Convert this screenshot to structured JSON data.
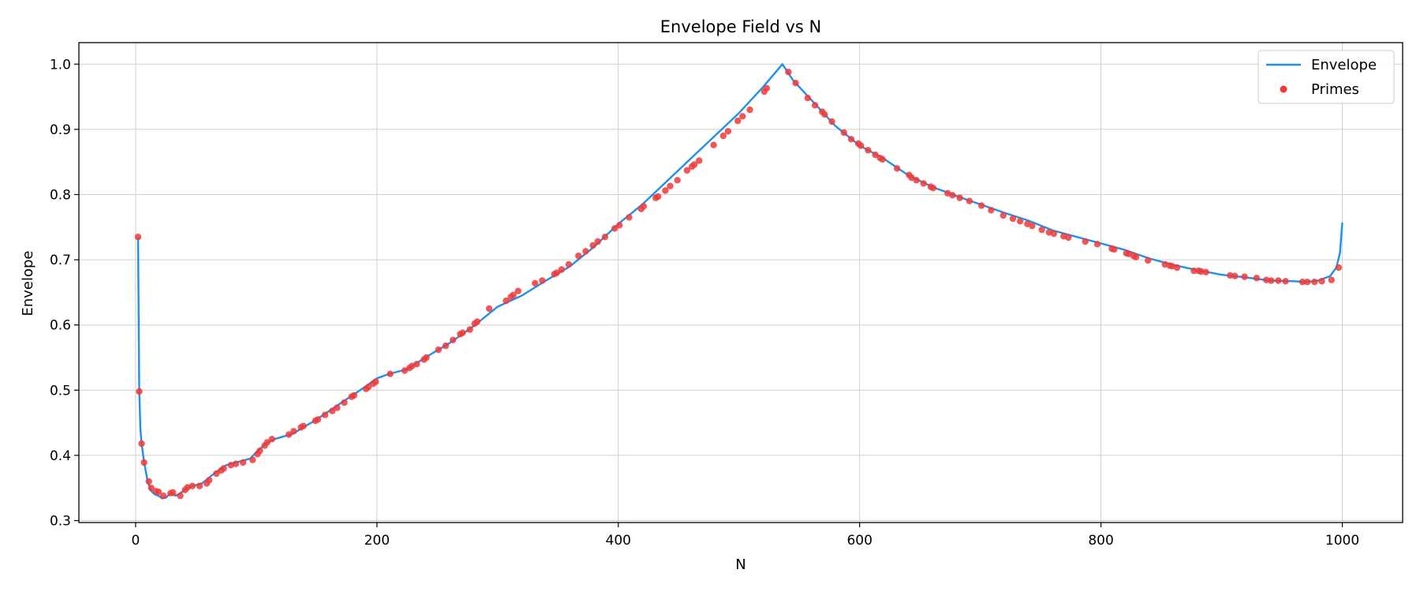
{
  "chart_data": {
    "type": "line",
    "title": "Envelope Field vs N",
    "xlabel": "N",
    "ylabel": "Envelope",
    "xlim": [
      -47,
      1050
    ],
    "ylim": [
      0.297,
      1.033
    ],
    "xticks": [
      0,
      200,
      400,
      600,
      800,
      1000
    ],
    "yticks": [
      0.3,
      0.4,
      0.5,
      0.6,
      0.7,
      0.8,
      0.9,
      1.0
    ],
    "xtick_labels": [
      "0",
      "200",
      "400",
      "600",
      "800",
      "1000"
    ],
    "ytick_labels": [
      "0.3",
      "0.4",
      "0.5",
      "0.6",
      "0.7",
      "0.8",
      "0.9",
      "1.0"
    ],
    "grid": true,
    "legend": "top-right",
    "colors": {
      "envelope": "#1f8ff0",
      "primes": "#f03a3a"
    },
    "series": [
      {
        "name": "Envelope",
        "type": "line",
        "x": [
          2,
          3,
          4,
          5,
          7,
          10,
          13,
          16,
          19,
          22,
          25,
          29,
          33,
          37,
          45,
          55,
          65,
          75,
          85,
          95,
          100,
          108,
          115,
          130,
          150,
          170,
          190,
          200,
          210,
          225,
          240,
          260,
          280,
          300,
          320,
          340,
          360,
          380,
          400,
          420,
          440,
          460,
          480,
          500,
          520,
          536,
          545,
          560,
          580,
          600,
          620,
          640,
          660,
          680,
          700,
          720,
          740,
          760,
          780,
          800,
          820,
          840,
          860,
          880,
          900,
          920,
          940,
          960,
          970,
          980,
          990,
          995,
          998,
          1000
        ],
        "y": [
          0.735,
          0.5,
          0.44,
          0.418,
          0.39,
          0.36,
          0.345,
          0.34,
          0.338,
          0.334,
          0.335,
          0.342,
          0.338,
          0.342,
          0.352,
          0.357,
          0.372,
          0.385,
          0.39,
          0.395,
          0.405,
          0.418,
          0.425,
          0.433,
          0.455,
          0.48,
          0.505,
          0.518,
          0.525,
          0.532,
          0.55,
          0.572,
          0.598,
          0.628,
          0.645,
          0.668,
          0.69,
          0.72,
          0.755,
          0.785,
          0.82,
          0.855,
          0.89,
          0.925,
          0.965,
          1.0,
          0.975,
          0.945,
          0.905,
          0.875,
          0.855,
          0.83,
          0.812,
          0.798,
          0.785,
          0.772,
          0.76,
          0.745,
          0.735,
          0.725,
          0.715,
          0.702,
          0.692,
          0.684,
          0.677,
          0.673,
          0.668,
          0.667,
          0.666,
          0.668,
          0.675,
          0.688,
          0.71,
          0.757
        ]
      },
      {
        "name": "Primes",
        "type": "scatter",
        "x": [
          2,
          3,
          5,
          7,
          11,
          13,
          17,
          19,
          23,
          29,
          31,
          37,
          41,
          43,
          47,
          53,
          59,
          61,
          67,
          71,
          73,
          79,
          83,
          89,
          97,
          101,
          103,
          107,
          109,
          113,
          127,
          131,
          137,
          139,
          149,
          151,
          157,
          163,
          167,
          173,
          179,
          181,
          191,
          193,
          197,
          199,
          211,
          223,
          227,
          229,
          233,
          239,
          241,
          251,
          257,
          263,
          269,
          271,
          277,
          281,
          283,
          293,
          307,
          311,
          313,
          317,
          331,
          337,
          347,
          349,
          353,
          359,
          367,
          373,
          379,
          383,
          389,
          397,
          401,
          409,
          419,
          421,
          431,
          433,
          439,
          443,
          449,
          457,
          461,
          463,
          467,
          479,
          487,
          491,
          499,
          503,
          509,
          521,
          523,
          541,
          547,
          557,
          563,
          569,
          571,
          577,
          587,
          593,
          599,
          601,
          607,
          613,
          617,
          619,
          631,
          641,
          643,
          647,
          653,
          659,
          661,
          673,
          677,
          683,
          691,
          701,
          709,
          719,
          727,
          733,
          739,
          743,
          751,
          757,
          761,
          769,
          773,
          787,
          797,
          809,
          811,
          821,
          823,
          827,
          829,
          839,
          853,
          857,
          859,
          863,
          877,
          881,
          883,
          887,
          907,
          911,
          919,
          929,
          937,
          941,
          947,
          953,
          967,
          971,
          977,
          983,
          991,
          997
        ],
        "y": [
          0.735,
          0.498,
          0.418,
          0.389,
          0.36,
          0.35,
          0.345,
          0.344,
          0.338,
          0.342,
          0.343,
          0.338,
          0.347,
          0.351,
          0.353,
          0.353,
          0.357,
          0.362,
          0.372,
          0.377,
          0.38,
          0.385,
          0.387,
          0.389,
          0.393,
          0.402,
          0.407,
          0.415,
          0.42,
          0.425,
          0.432,
          0.437,
          0.443,
          0.445,
          0.453,
          0.455,
          0.462,
          0.468,
          0.473,
          0.481,
          0.49,
          0.492,
          0.502,
          0.505,
          0.51,
          0.513,
          0.525,
          0.53,
          0.534,
          0.537,
          0.54,
          0.547,
          0.55,
          0.562,
          0.568,
          0.577,
          0.586,
          0.588,
          0.593,
          0.602,
          0.605,
          0.625,
          0.637,
          0.643,
          0.646,
          0.652,
          0.664,
          0.668,
          0.678,
          0.68,
          0.685,
          0.693,
          0.706,
          0.713,
          0.722,
          0.728,
          0.735,
          0.748,
          0.753,
          0.765,
          0.778,
          0.782,
          0.795,
          0.797,
          0.806,
          0.813,
          0.822,
          0.837,
          0.843,
          0.846,
          0.852,
          0.876,
          0.89,
          0.897,
          0.913,
          0.92,
          0.93,
          0.958,
          0.963,
          0.988,
          0.971,
          0.948,
          0.937,
          0.927,
          0.923,
          0.912,
          0.895,
          0.885,
          0.878,
          0.875,
          0.868,
          0.861,
          0.856,
          0.854,
          0.84,
          0.83,
          0.826,
          0.822,
          0.817,
          0.812,
          0.81,
          0.802,
          0.799,
          0.795,
          0.79,
          0.783,
          0.776,
          0.768,
          0.763,
          0.759,
          0.755,
          0.752,
          0.746,
          0.742,
          0.74,
          0.736,
          0.734,
          0.728,
          0.724,
          0.717,
          0.716,
          0.71,
          0.709,
          0.706,
          0.704,
          0.699,
          0.693,
          0.691,
          0.69,
          0.688,
          0.683,
          0.683,
          0.682,
          0.681,
          0.676,
          0.675,
          0.674,
          0.672,
          0.669,
          0.668,
          0.668,
          0.667,
          0.666,
          0.666,
          0.666,
          0.667,
          0.669,
          0.688
        ]
      }
    ]
  }
}
